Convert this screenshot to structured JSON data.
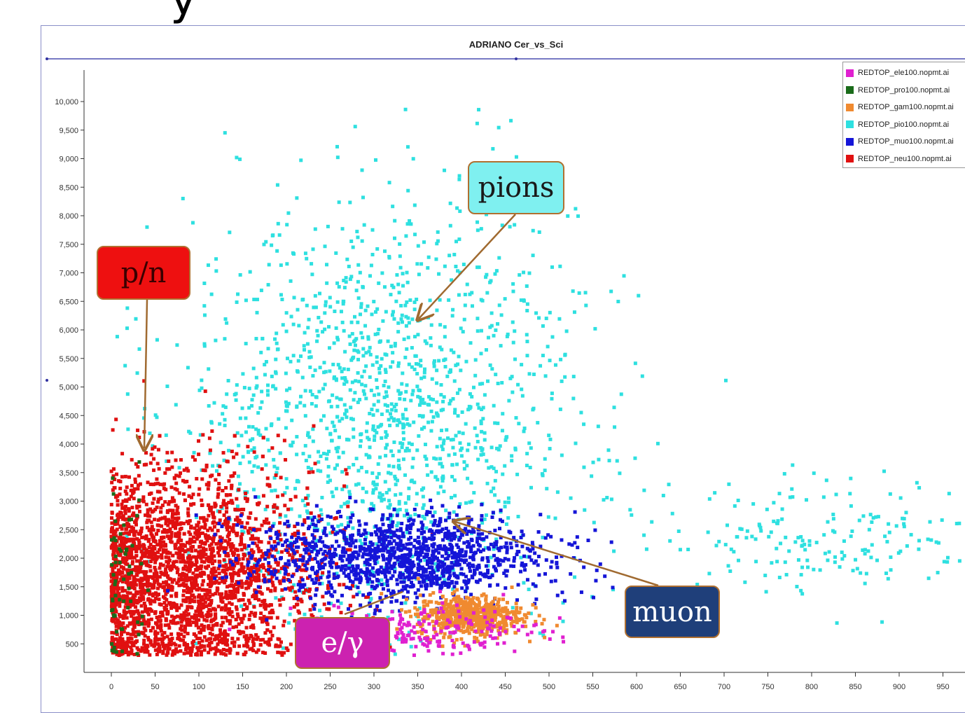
{
  "chart_data": {
    "type": "scatter",
    "title": "ADRIANO Cer_vs_Sci",
    "xlim": [
      -30,
      970
    ],
    "ylim": [
      0,
      10000
    ],
    "x_ticks": [
      "0",
      "50",
      "100",
      "150",
      "200",
      "250",
      "300",
      "350",
      "400",
      "450",
      "500",
      "550",
      "600",
      "650",
      "700",
      "750",
      "800",
      "850",
      "900",
      "950"
    ],
    "y_ticks": [
      "500",
      "1,000",
      "1,500",
      "2,000",
      "2,500",
      "3,000",
      "3,500",
      "4,000",
      "4,500",
      "5,000",
      "5,500",
      "6,000",
      "6,500",
      "7,000",
      "7,500",
      "8,000",
      "8,500",
      "9,000",
      "9,500",
      "10,000"
    ],
    "legend_position": "top-right",
    "series": [
      {
        "name": "REDTOP_ele100.nopmt.ai",
        "color": "#e020d0",
        "clusters": [
          {
            "cx": 350,
            "cy": 700,
            "sx": 70,
            "sy": 200,
            "n": 220
          }
        ]
      },
      {
        "name": "REDTOP_pro100.nopmt.ai",
        "color": "#1a6b1a",
        "clusters": [
          {
            "cx": 10,
            "cy": 1500,
            "sx": 15,
            "sy": 900,
            "n": 60
          }
        ]
      },
      {
        "name": "REDTOP_gam100.nopmt.ai",
        "color": "#f08a30",
        "clusters": [
          {
            "cx": 410,
            "cy": 1000,
            "sx": 30,
            "sy": 180,
            "n": 600
          }
        ]
      },
      {
        "name": "REDTOP_pio100.nopmt.ai",
        "color": "#2ee0e0",
        "clusters": [
          {
            "cx": 310,
            "cy": 4500,
            "sx": 110,
            "sy": 1800,
            "n": 1500
          },
          {
            "cx": 820,
            "cy": 2400,
            "sx": 95,
            "sy": 500,
            "n": 190
          }
        ]
      },
      {
        "name": "REDTOP_muo100.nopmt.ai",
        "color": "#1515d8",
        "clusters": [
          {
            "cx": 330,
            "cy": 2000,
            "sx": 80,
            "sy": 380,
            "n": 1300
          }
        ]
      },
      {
        "name": "REDTOP_neu100.nopmt.ai",
        "color": "#e01010",
        "clusters": [
          {
            "cx": 80,
            "cy": 1700,
            "sx": 75,
            "sy": 900,
            "n": 3000
          }
        ]
      }
    ]
  },
  "annotations": [
    {
      "label": "p/n",
      "bg": "#ee1010",
      "fg": "#3a0000"
    },
    {
      "label": "pions",
      "bg": "#7ff0f0",
      "fg": "#1a1a1a"
    },
    {
      "label": "muon",
      "bg": "#1f3f7a",
      "fg": "#ffffff"
    },
    {
      "label": "e/γ",
      "bg": "#cc22b0",
      "fg": "#ffffff"
    }
  ],
  "corner_glyph": "y"
}
